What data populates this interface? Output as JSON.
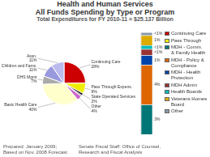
{
  "chart_data": [
    {
      "type": "pie",
      "title": [
        "Health and Human Services",
        "All Funds Spending by Type or Program"
      ],
      "subtitle": "Total Expenditures for FY 2010-11 = $25.137 Billion",
      "categories": [
        "Continuing Care",
        "Pass Through Expens.",
        "State Operated Services",
        null,
        "Other",
        "Basic Health Care",
        "DHS Mgmt",
        "Children and Fams.",
        "Assn."
      ],
      "values": [
        28,
        9,
        2,
        1,
        4,
        40,
        7,
        11,
        11
      ],
      "value_labels": [
        "28%",
        "9%",
        "2%",
        null,
        "4%",
        "40%",
        "7%",
        "11%",
        "11%"
      ],
      "colors": [
        "#cc0000",
        "#eeee00",
        "#111111",
        "#440044",
        "#cc66cc",
        "#ffffcc",
        "#aaaaaa",
        "#9999dd",
        "#bbbbee"
      ],
      "data_labels": true,
      "annotations": [
        "Prepared: January 2009;",
        "Based on Nov. 2008 Forecast",
        "Senate Fiscal Staff: Office of Counsel,",
        "Research and Fiscal Analysis"
      ]
    },
    {
      "type": "bar",
      "stacked": true,
      "categories": [
        null
      ],
      "series": [
        {
          "name": "Continuing Care",
          "color": "#cc0000",
          "values": [
            null
          ]
        },
        {
          "name": "Pass Through",
          "color": "#eeee00",
          "values": [
            null
          ]
        },
        {
          "name": "MDH - Comm.\n& Family Health",
          "color": "#007777",
          "values": [
            3
          ],
          "value_labels": [
            "3%"
          ]
        },
        {
          "name": "MDH - Policy &\nCompliance",
          "color": "#dd6600",
          "values": [
            4
          ],
          "value_labels": [
            "4%"
          ]
        },
        {
          "name": "MDH - Health\nProtection",
          "color": "#0044aa",
          "values": [
            1
          ],
          "value_labels": [
            "1%"
          ]
        },
        {
          "name": "MDH Admin",
          "color": "#993333",
          "values": [
            0.6
          ],
          "value_labels": [
            "<1%"
          ]
        },
        {
          "name": "Health Boards",
          "color": "#00bbbb",
          "values": [
            0.4
          ],
          "value_labels": [
            "<1%"
          ]
        },
        {
          "name": "Veterans Homes\nBoard",
          "color": "#ddaa00",
          "values": [
            1
          ],
          "value_labels": [
            "1%"
          ]
        },
        {
          "name": "Other",
          "color": "#8899aa",
          "values": [
            0.3
          ],
          "value_labels": [
            "<1%"
          ]
        }
      ],
      "ylim": [
        0,
        10.3
      ],
      "tick_labels": false,
      "grid": false,
      "data_labels": true,
      "legend": "right"
    }
  ]
}
